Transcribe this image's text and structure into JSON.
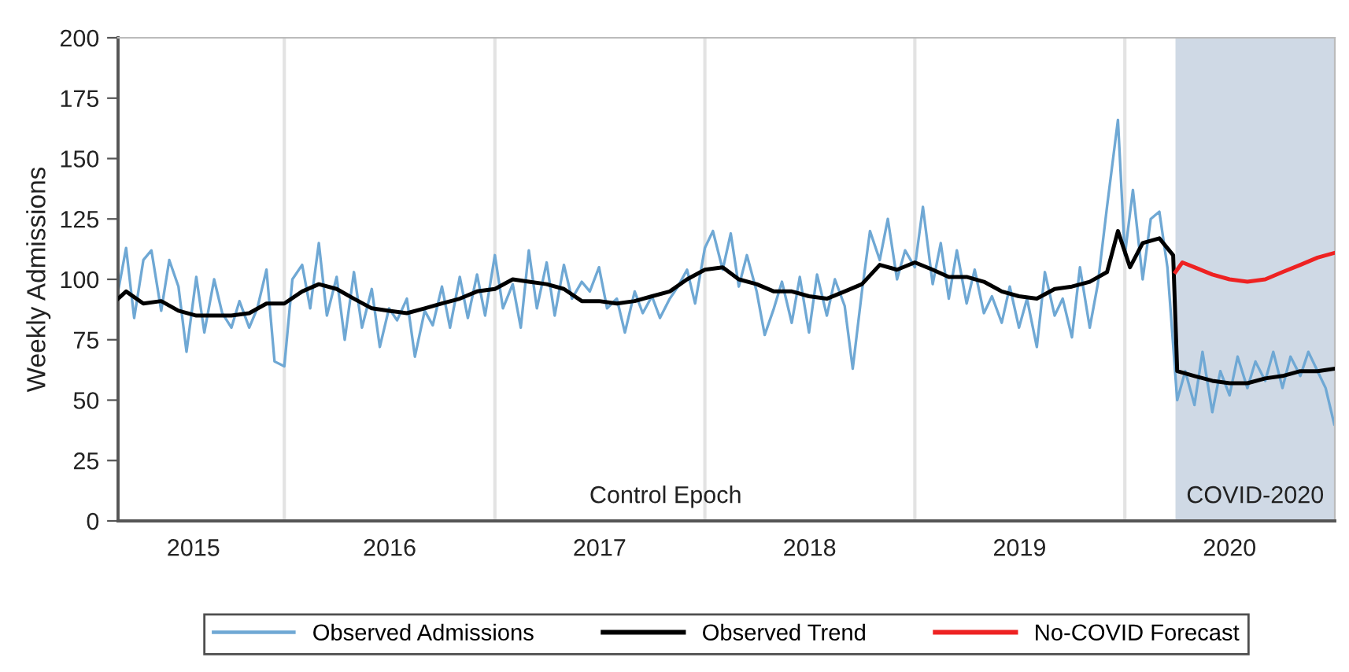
{
  "chart_data": {
    "type": "line",
    "ylabel": "Weekly Admissions",
    "ylim": [
      0,
      200
    ],
    "yticks": [
      0,
      25,
      50,
      75,
      100,
      125,
      150,
      175,
      200
    ],
    "xlim": [
      "2015-03-18",
      "2020-12-31"
    ],
    "xticks": [
      {
        "value": "2015-07-27",
        "label": "2015"
      },
      {
        "value": "2016-07-02",
        "label": "2016"
      },
      {
        "value": "2017-07-02",
        "label": "2017"
      },
      {
        "value": "2018-07-02",
        "label": "2018"
      },
      {
        "value": "2019-07-02",
        "label": "2019"
      },
      {
        "value": "2020-07-01",
        "label": "2020"
      }
    ],
    "grid": false,
    "legend": "bottom",
    "line_style": "solid",
    "marker": "none",
    "ref_lines": [
      {
        "axis": "x",
        "value": "2016-01-01",
        "color": "#e3e3e3"
      },
      {
        "axis": "x",
        "value": "2017-01-01",
        "color": "#e3e3e3"
      },
      {
        "axis": "x",
        "value": "2018-01-01",
        "color": "#e3e3e3"
      },
      {
        "axis": "x",
        "value": "2019-01-01",
        "color": "#e3e3e3"
      },
      {
        "axis": "x",
        "value": "2020-01-01",
        "color": "#e3e3e3"
      }
    ],
    "bands": [
      {
        "axis": "x",
        "from": "2020-03-29",
        "to": "2020-12-31",
        "label": "COVID-2020",
        "color": "#cfd9e5"
      }
    ],
    "annotations": [
      "Control Epoch"
    ],
    "series": [
      {
        "name": "Observed Admissions",
        "color": "#6fa8d4",
        "x": [
          "2015-03-18",
          "2015-04-01",
          "2015-04-15",
          "2015-05-01",
          "2015-05-15",
          "2015-06-01",
          "2015-06-15",
          "2015-07-01",
          "2015-07-15",
          "2015-08-01",
          "2015-08-15",
          "2015-09-01",
          "2015-09-15",
          "2015-10-01",
          "2015-10-15",
          "2015-11-01",
          "2015-11-15",
          "2015-12-01",
          "2015-12-15",
          "2016-01-01",
          "2016-01-15",
          "2016-02-01",
          "2016-02-15",
          "2016-03-01",
          "2016-03-15",
          "2016-04-01",
          "2016-04-15",
          "2016-05-01",
          "2016-05-15",
          "2016-06-01",
          "2016-06-15",
          "2016-07-01",
          "2016-07-15",
          "2016-08-01",
          "2016-08-15",
          "2016-09-01",
          "2016-09-15",
          "2016-10-01",
          "2016-10-15",
          "2016-11-01",
          "2016-11-15",
          "2016-12-01",
          "2016-12-15",
          "2017-01-01",
          "2017-01-15",
          "2017-02-01",
          "2017-02-15",
          "2017-03-01",
          "2017-03-15",
          "2017-04-01",
          "2017-04-15",
          "2017-05-01",
          "2017-05-15",
          "2017-06-01",
          "2017-06-15",
          "2017-07-01",
          "2017-07-15",
          "2017-08-01",
          "2017-08-15",
          "2017-09-01",
          "2017-09-15",
          "2017-10-01",
          "2017-10-15",
          "2017-11-01",
          "2017-11-15",
          "2017-12-01",
          "2017-12-15",
          "2018-01-01",
          "2018-01-15",
          "2018-02-01",
          "2018-02-15",
          "2018-03-01",
          "2018-03-15",
          "2018-04-01",
          "2018-04-15",
          "2018-05-01",
          "2018-05-15",
          "2018-06-01",
          "2018-06-15",
          "2018-07-01",
          "2018-07-15",
          "2018-08-01",
          "2018-08-15",
          "2018-09-01",
          "2018-09-15",
          "2018-10-01",
          "2018-10-15",
          "2018-11-01",
          "2018-11-15",
          "2018-12-01",
          "2018-12-15",
          "2019-01-01",
          "2019-01-15",
          "2019-02-01",
          "2019-02-15",
          "2019-03-01",
          "2019-03-15",
          "2019-04-01",
          "2019-04-15",
          "2019-05-01",
          "2019-05-15",
          "2019-06-01",
          "2019-06-15",
          "2019-07-01",
          "2019-07-15",
          "2019-08-01",
          "2019-08-15",
          "2019-09-01",
          "2019-09-15",
          "2019-10-01",
          "2019-10-15",
          "2019-11-01",
          "2019-11-15",
          "2019-12-01",
          "2019-12-20",
          "2020-01-01",
          "2020-01-15",
          "2020-02-01",
          "2020-02-15",
          "2020-03-01",
          "2020-03-15",
          "2020-04-01",
          "2020-04-15",
          "2020-05-01",
          "2020-05-15",
          "2020-06-01",
          "2020-06-15",
          "2020-07-01",
          "2020-07-15",
          "2020-08-01",
          "2020-08-15",
          "2020-09-01",
          "2020-09-15",
          "2020-10-01",
          "2020-10-15",
          "2020-11-01",
          "2020-11-15",
          "2020-12-01",
          "2020-12-15",
          "2020-12-30"
        ],
        "values": [
          95,
          113,
          84,
          108,
          112,
          87,
          108,
          97,
          70,
          101,
          78,
          100,
          86,
          80,
          91,
          80,
          88,
          104,
          66,
          64,
          100,
          106,
          88,
          115,
          85,
          101,
          75,
          103,
          80,
          96,
          72,
          88,
          83,
          92,
          68,
          87,
          81,
          97,
          80,
          101,
          84,
          102,
          85,
          110,
          88,
          98,
          80,
          112,
          88,
          107,
          85,
          106,
          92,
          99,
          95,
          105,
          88,
          92,
          78,
          95,
          86,
          93,
          84,
          92,
          97,
          104,
          90,
          113,
          120,
          104,
          119,
          97,
          110,
          95,
          77,
          88,
          99,
          82,
          101,
          78,
          102,
          85,
          100,
          89,
          63,
          95,
          120,
          108,
          125,
          100,
          112,
          105,
          130,
          98,
          115,
          92,
          112,
          90,
          104,
          86,
          93,
          82,
          97,
          80,
          92,
          72,
          103,
          85,
          92,
          76,
          105,
          80,
          98,
          130,
          166,
          110,
          137,
          100,
          125,
          128,
          105,
          50,
          62,
          48,
          70,
          45,
          62,
          52,
          68,
          55,
          66,
          58,
          70,
          55,
          68,
          60,
          70,
          62,
          55,
          40
        ]
      },
      {
        "name": "Observed Trend",
        "color": "#000000",
        "x": [
          "2015-03-18",
          "2015-04-01",
          "2015-05-01",
          "2015-06-01",
          "2015-07-01",
          "2015-08-01",
          "2015-09-01",
          "2015-10-01",
          "2015-11-01",
          "2015-12-01",
          "2016-01-01",
          "2016-02-01",
          "2016-03-01",
          "2016-04-01",
          "2016-05-01",
          "2016-06-01",
          "2016-07-01",
          "2016-08-01",
          "2016-09-01",
          "2016-10-01",
          "2016-11-01",
          "2016-12-01",
          "2017-01-01",
          "2017-02-01",
          "2017-03-01",
          "2017-04-01",
          "2017-05-01",
          "2017-06-01",
          "2017-07-01",
          "2017-08-01",
          "2017-09-01",
          "2017-10-01",
          "2017-11-01",
          "2017-12-01",
          "2018-01-01",
          "2018-02-01",
          "2018-03-01",
          "2018-04-01",
          "2018-05-01",
          "2018-06-01",
          "2018-07-01",
          "2018-08-01",
          "2018-09-01",
          "2018-10-01",
          "2018-11-01",
          "2018-12-01",
          "2019-01-01",
          "2019-02-01",
          "2019-03-01",
          "2019-04-01",
          "2019-05-01",
          "2019-06-01",
          "2019-07-01",
          "2019-08-01",
          "2019-09-01",
          "2019-10-01",
          "2019-11-01",
          "2019-12-01",
          "2019-12-20",
          "2020-01-10",
          "2020-02-01",
          "2020-03-01",
          "2020-03-25",
          "2020-04-01",
          "2020-05-01",
          "2020-06-01",
          "2020-07-01",
          "2020-08-01",
          "2020-09-01",
          "2020-10-01",
          "2020-11-01",
          "2020-12-01",
          "2020-12-30"
        ],
        "values": [
          92,
          95,
          90,
          91,
          87,
          85,
          85,
          85,
          86,
          90,
          90,
          95,
          98,
          96,
          92,
          88,
          87,
          86,
          88,
          90,
          92,
          95,
          96,
          100,
          99,
          98,
          96,
          91,
          91,
          90,
          91,
          93,
          95,
          100,
          104,
          105,
          100,
          98,
          95,
          95,
          93,
          92,
          95,
          98,
          106,
          104,
          107,
          104,
          101,
          101,
          99,
          95,
          93,
          92,
          96,
          97,
          99,
          103,
          120,
          105,
          115,
          117,
          110,
          62,
          60,
          58,
          57,
          57,
          59,
          60,
          62,
          62,
          63
        ]
      },
      {
        "name": "No-COVID Forecast",
        "color": "#ee2222",
        "x": [
          "2020-03-29",
          "2020-04-10",
          "2020-05-01",
          "2020-06-01",
          "2020-07-01",
          "2020-08-01",
          "2020-09-01",
          "2020-10-01",
          "2020-11-01",
          "2020-12-01",
          "2020-12-31"
        ],
        "values": [
          103,
          107,
          105,
          102,
          100,
          99,
          100,
          103,
          106,
          109,
          111
        ]
      }
    ]
  }
}
